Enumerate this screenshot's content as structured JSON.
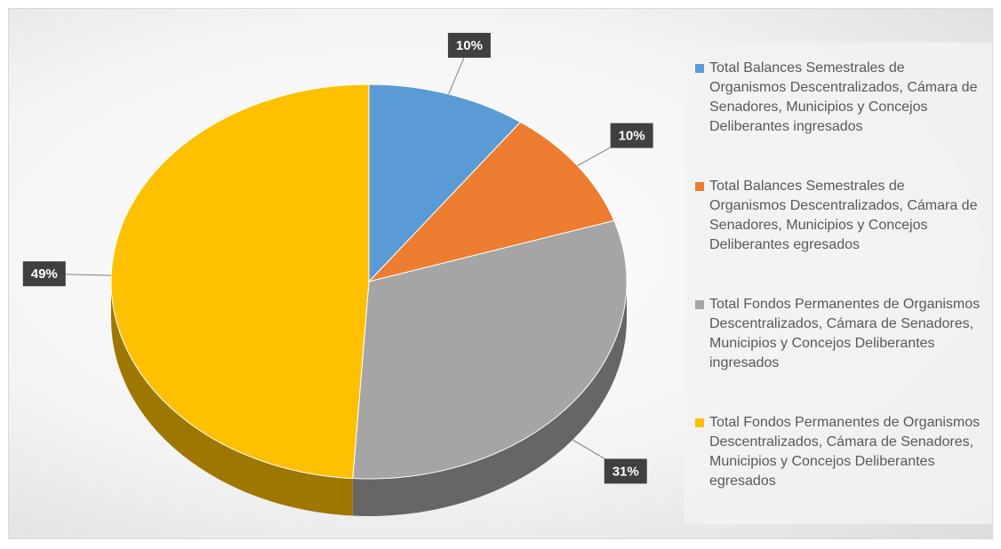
{
  "chart_data": {
    "type": "pie",
    "categories": [
      "Total Balances Semestrales de Organismos Descentralizados, Cámara de Senadores, Municipios y Concejos Deliberantes ingresados",
      "Total Balances Semestrales de Organismos Descentralizados, Cámara de Senadores, Municipios y Concejos Deliberantes egresados",
      "Total Fondos Permanentes de Organismos Descentralizados, Cámara de Senadores, Municipios y Concejos Deliberantes ingresados",
      "Total Fondos Permanentes de Organismos Descentralizados, Cámara de Senadores, Municipios y Concejos Deliberantes egresados"
    ],
    "values": [
      10,
      10,
      31,
      49
    ],
    "value_labels": [
      "10%",
      "10%",
      "31%",
      "49%"
    ],
    "colors": [
      "#5b9bd5",
      "#ed7d31",
      "#a5a5a5",
      "#ffc000"
    ]
  }
}
